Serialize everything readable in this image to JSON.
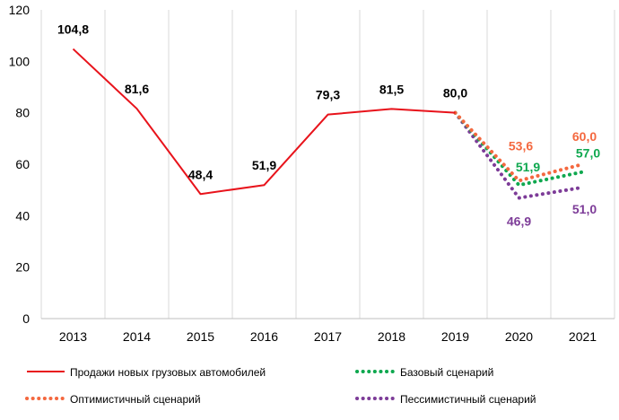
{
  "chart_data": {
    "type": "line",
    "title": "",
    "xlabel": "",
    "ylabel": "",
    "categories": [
      "2013",
      "2014",
      "2015",
      "2016",
      "2017",
      "2018",
      "2019",
      "2020",
      "2021"
    ],
    "ylim": [
      0,
      120
    ],
    "yticks": [
      "0",
      "20",
      "40",
      "60",
      "80",
      "100",
      "120"
    ],
    "grid": "vertical",
    "legend_position": "bottom",
    "colors": {
      "sales": "#e8131b",
      "optimistic": "#f4683f",
      "base": "#0fa84f",
      "pessimistic": "#7d3c98"
    },
    "series": [
      {
        "key": "sales",
        "name": "Продажи новых грузовых автомобилей",
        "style": "solid",
        "x": [
          "2013",
          "2014",
          "2015",
          "2016",
          "2017",
          "2018",
          "2019"
        ],
        "values": [
          104.8,
          81.6,
          48.4,
          51.9,
          79.3,
          81.5,
          80.0
        ],
        "labels": [
          "104,8",
          "81,6",
          "48,4",
          "51,9",
          "79,3",
          "81,5",
          "80,0"
        ]
      },
      {
        "key": "base",
        "name": "Базовый сценарий",
        "style": "dotted",
        "x": [
          "2019",
          "2020",
          "2021"
        ],
        "values": [
          80.0,
          51.9,
          57.0
        ],
        "labels": [
          "",
          "51,9",
          "57,0"
        ]
      },
      {
        "key": "optimistic",
        "name": "Оптимистичный сценарий",
        "style": "dotted",
        "x": [
          "2019",
          "2020",
          "2021"
        ],
        "values": [
          80.0,
          53.6,
          60.0
        ],
        "labels": [
          "",
          "53,6",
          "60,0"
        ]
      },
      {
        "key": "pessimistic",
        "name": "Пессимистичный сценарий",
        "style": "dotted",
        "x": [
          "2019",
          "2020",
          "2021"
        ],
        "values": [
          80.0,
          46.9,
          51.0
        ],
        "labels": [
          "",
          "46,9",
          "51,0"
        ]
      }
    ]
  }
}
